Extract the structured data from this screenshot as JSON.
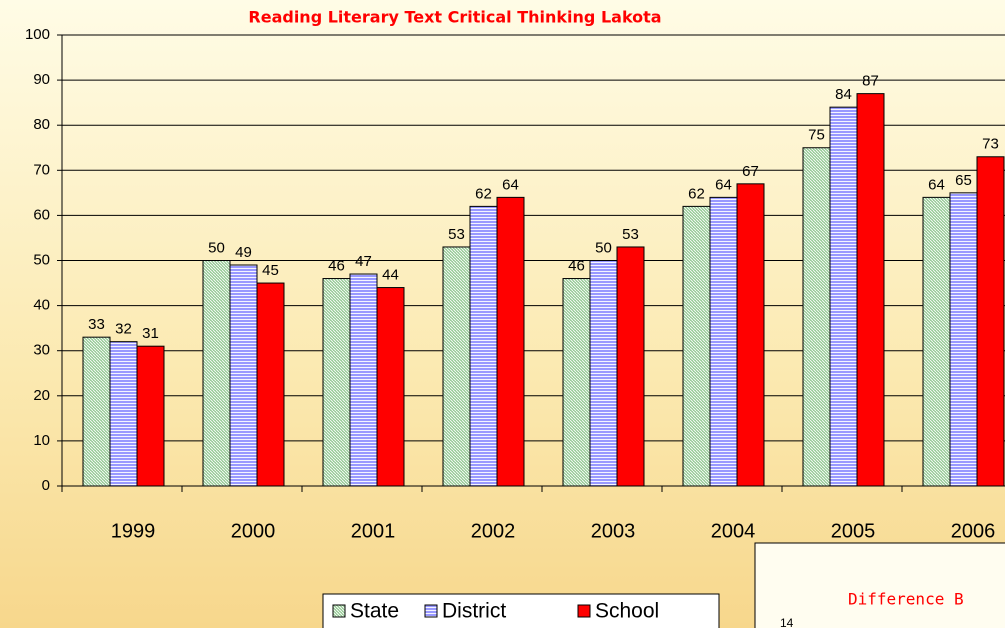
{
  "chart_data": {
    "type": "bar",
    "title": "Reading Literary Text Critical Thinking Lakota",
    "categories": [
      "1999",
      "2000",
      "2001",
      "2002",
      "2003",
      "2004",
      "2005",
      "2006"
    ],
    "series": [
      {
        "name": "State",
        "color": "#99cc99",
        "values": [
          33,
          50,
          46,
          53,
          46,
          62,
          75,
          64
        ]
      },
      {
        "name": "District",
        "color": "#9999ff",
        "values": [
          32,
          49,
          47,
          62,
          50,
          64,
          84,
          65
        ]
      },
      {
        "name": "School",
        "color": "#ff0000",
        "values": [
          31,
          45,
          44,
          64,
          53,
          67,
          87,
          73
        ]
      }
    ],
    "ylim": [
      0,
      100
    ],
    "yticks": [
      0,
      10,
      20,
      30,
      40,
      50,
      60,
      70,
      80,
      90,
      100
    ],
    "grid": true,
    "legend": "bottom"
  },
  "inset": {
    "title": "Difference B",
    "label": "14"
  }
}
